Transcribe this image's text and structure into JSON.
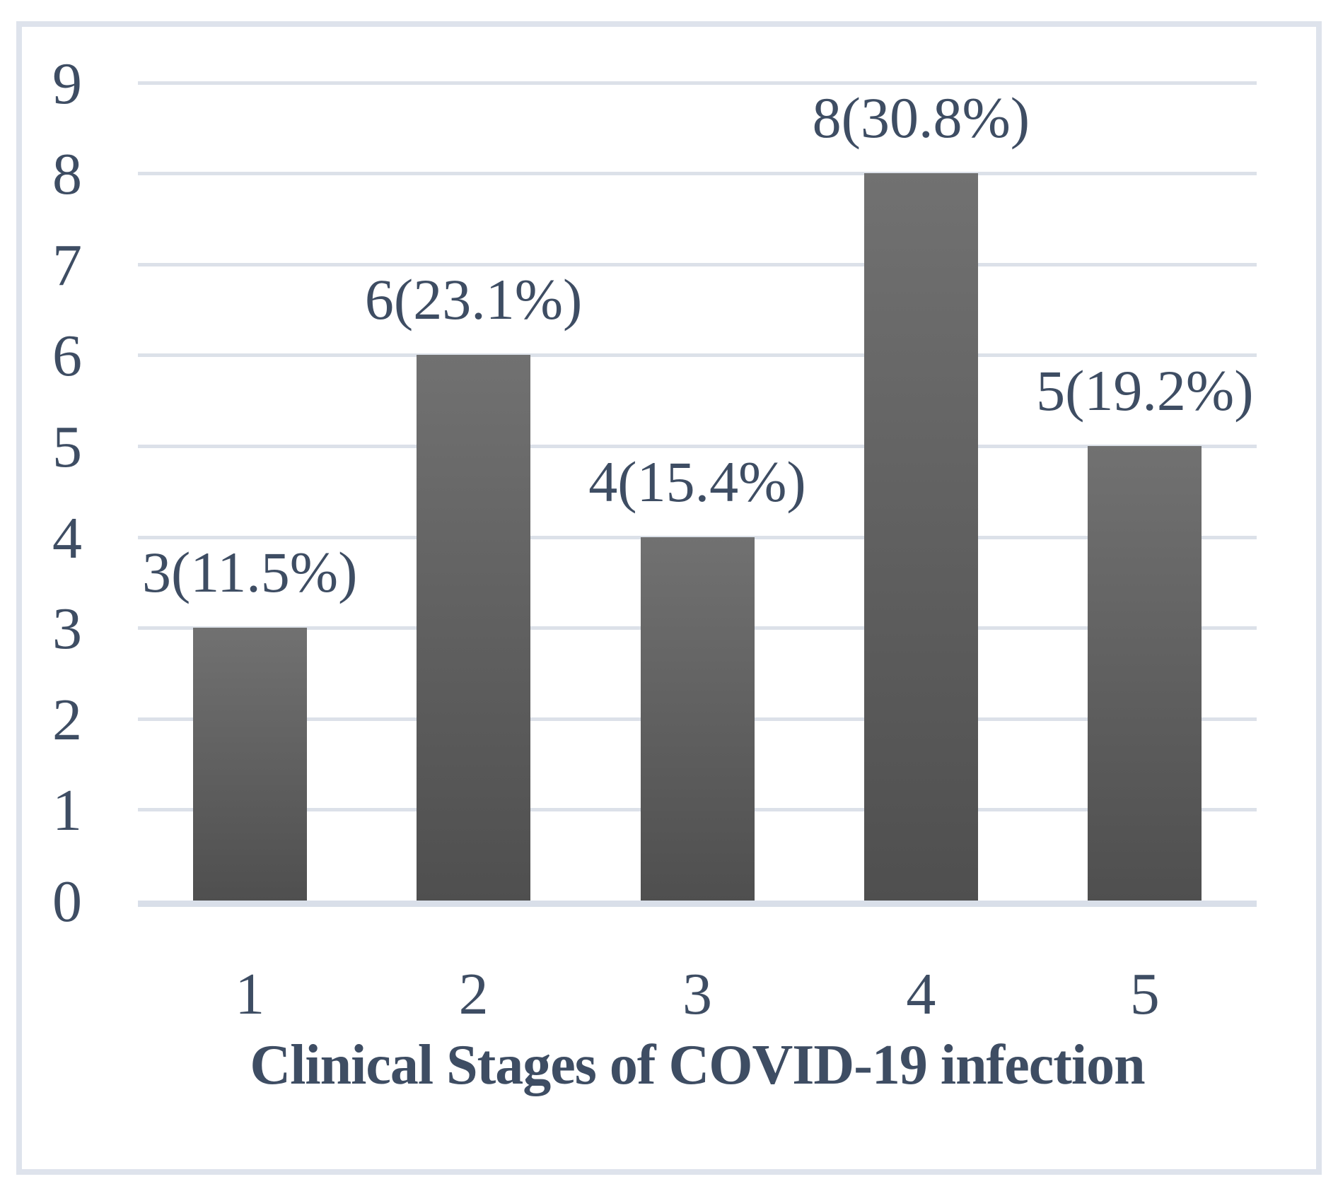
{
  "frame": {
    "background": "#ffffff",
    "border_color": "#dee3ec"
  },
  "chart_data": {
    "type": "bar",
    "title": "",
    "xlabel": "Clinical Stages of COVID-19 infection",
    "ylabel": "",
    "categories": [
      "1",
      "2",
      "3",
      "4",
      "5"
    ],
    "values": [
      3,
      6,
      4,
      8,
      5
    ],
    "data_labels": [
      "3(11.5%)",
      "6(23.1%)",
      "4(15.4%)",
      "8(30.8%)",
      "5(19.2%)"
    ],
    "percentages": [
      11.5,
      23.1,
      15.4,
      30.8,
      19.2
    ],
    "ylim": [
      0,
      9
    ],
    "yticks": [
      0,
      1,
      2,
      3,
      4,
      5,
      6,
      7,
      8,
      9
    ],
    "grid": true,
    "legend": "none",
    "colors": {
      "bar_top": "#717171",
      "bar_bottom": "#4f4f4f",
      "gridline": "#dce1e9",
      "axis_line": "#d9dfe9",
      "text": "#3e4d63"
    }
  }
}
